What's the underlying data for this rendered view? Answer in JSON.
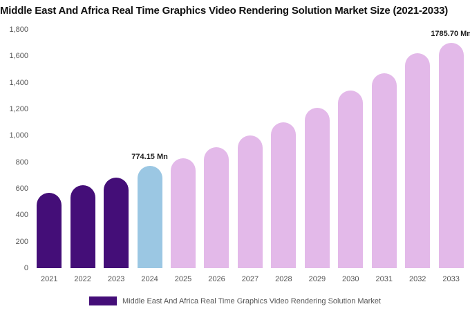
{
  "title": "Middle East And Africa Real Time Graphics Video Rendering Solution Market Size (2021-2033)",
  "chart_data": {
    "type": "bar",
    "title": "Middle East And Africa Real Time Graphics Video Rendering Solution Market Size (2021-2033)",
    "categories": [
      "2021",
      "2022",
      "2023",
      "2024",
      "2025",
      "2026",
      "2027",
      "2028",
      "2029",
      "2030",
      "2031",
      "2032",
      "2033"
    ],
    "values": [
      568,
      625,
      685,
      774.15,
      830,
      915,
      1000,
      1100,
      1210,
      1340,
      1470,
      1620,
      1785.7
    ],
    "bar_colors": [
      "#440e78",
      "#440e78",
      "#440e78",
      "#9bc7e3",
      "#e3b9e9",
      "#e3b9e9",
      "#e3b9e9",
      "#e3b9e9",
      "#e3b9e9",
      "#e3b9e9",
      "#e3b9e9",
      "#e3b9e9",
      "#e3b9e9"
    ],
    "annotations": [
      {
        "category": "2024",
        "text": "774.15 Mn"
      },
      {
        "category": "2033",
        "text": "1785.70 Mn"
      }
    ],
    "xlabel": "",
    "ylabel": "",
    "ylim": [
      0,
      1800
    ],
    "ytick_values": [
      0,
      200,
      400,
      600,
      800,
      1000,
      1200,
      1400,
      1600,
      1800
    ],
    "ytick_labels": [
      "0",
      "200",
      "400",
      "600",
      "800",
      "1,000",
      "1,200",
      "1,400",
      "1,600",
      "1,800"
    ],
    "grid": false,
    "legend_position": "bottom"
  },
  "legend": {
    "label": "Middle East And Africa Real Time Graphics Video Rendering Solution Market",
    "swatch_color": "#440e78"
  }
}
